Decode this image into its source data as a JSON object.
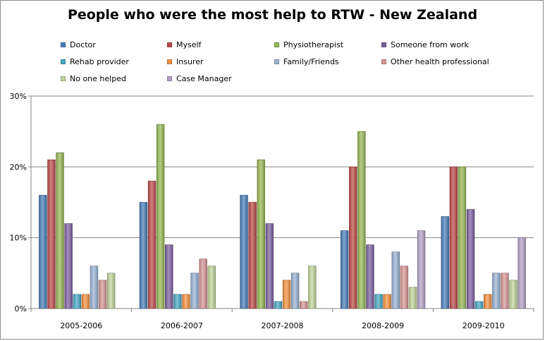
{
  "chart_data": {
    "type": "bar",
    "title": "People who were the most help to RTW - New Zealand",
    "categories": [
      "2005-2006",
      "2006-2007",
      "2007-2008",
      "2008-2009",
      "2009-2010"
    ],
    "y_ticks": [
      "0%",
      "10%",
      "20%",
      "30%"
    ],
    "ylim": [
      0,
      30
    ],
    "grid": true,
    "legend_position": "top",
    "series": [
      {
        "name": "Doctor",
        "color": "#4a7ebb",
        "values": [
          16,
          15,
          16,
          11,
          13
        ]
      },
      {
        "name": "Myself",
        "color": "#be4b48",
        "values": [
          21,
          18,
          15,
          20,
          20
        ]
      },
      {
        "name": "Physiotherapist",
        "color": "#98b954",
        "values": [
          22,
          26,
          21,
          25,
          20
        ]
      },
      {
        "name": "Someone from work",
        "color": "#7d60a0",
        "values": [
          12,
          9,
          12,
          9,
          14
        ]
      },
      {
        "name": "Rehab provider",
        "color": "#46aac5",
        "values": [
          2,
          2,
          1,
          2,
          1
        ]
      },
      {
        "name": "Insurer",
        "color": "#f69240",
        "values": [
          2,
          2,
          4,
          2,
          2
        ]
      },
      {
        "name": "Family/Friends",
        "color": "#99b4d6",
        "values": [
          6,
          5,
          5,
          8,
          5
        ]
      },
      {
        "name": "Other health professional",
        "color": "#d99795",
        "values": [
          4,
          7,
          1,
          6,
          5
        ]
      },
      {
        "name": "No one helped",
        "color": "#c3d69b",
        "values": [
          5,
          6,
          6,
          3,
          4
        ]
      },
      {
        "name": "Case Manager",
        "color": "#b3a2c7",
        "values": [
          0,
          0,
          0,
          11,
          10
        ]
      }
    ]
  }
}
